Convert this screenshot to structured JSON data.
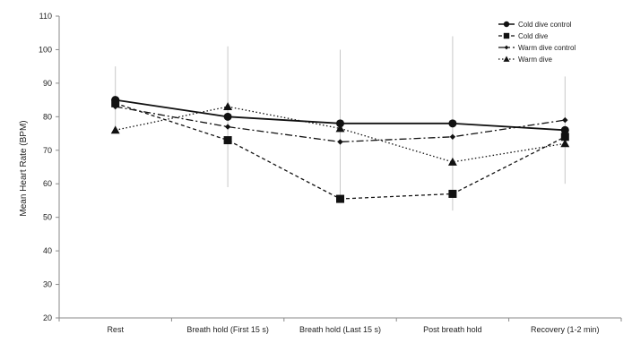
{
  "chart_data": {
    "type": "line",
    "title": "",
    "xlabel": "",
    "ylabel": "Mean Heart Rate (BPM)",
    "ylim": [
      20,
      110
    ],
    "yticks": [
      20,
      30,
      40,
      50,
      60,
      70,
      80,
      90,
      100,
      110
    ],
    "categories": [
      "Rest",
      "Breath hold (First 15 s)",
      "Breath hold (Last 15 s)",
      "Post breath hold",
      "Recovery (1-2 min)"
    ],
    "grid": false,
    "legend_position": "top-right",
    "series": [
      {
        "name": "Cold dive control",
        "values": [
          85,
          80,
          78,
          78,
          76
        ],
        "marker": "circle",
        "line_style": "solid",
        "error": [
          10,
          21,
          22,
          26,
          16
        ]
      },
      {
        "name": "Cold dive",
        "values": [
          84,
          73,
          55.5,
          57,
          74
        ],
        "marker": "square",
        "line_style": "dashed",
        "error": [
          0,
          0,
          0,
          0,
          0
        ]
      },
      {
        "name": "Warm dive control",
        "values": [
          83,
          77,
          72.5,
          74,
          79
        ],
        "marker": "diamond",
        "line_style": "dash-dot",
        "error": [
          0,
          0,
          0,
          0,
          0
        ]
      },
      {
        "name": "Warm dive",
        "values": [
          76,
          83,
          76.5,
          66.5,
          72
        ],
        "marker": "triangle",
        "line_style": "dotted",
        "error": [
          0,
          0,
          0,
          0,
          0
        ]
      }
    ],
    "error_bar_color": "#c8c8c8"
  }
}
